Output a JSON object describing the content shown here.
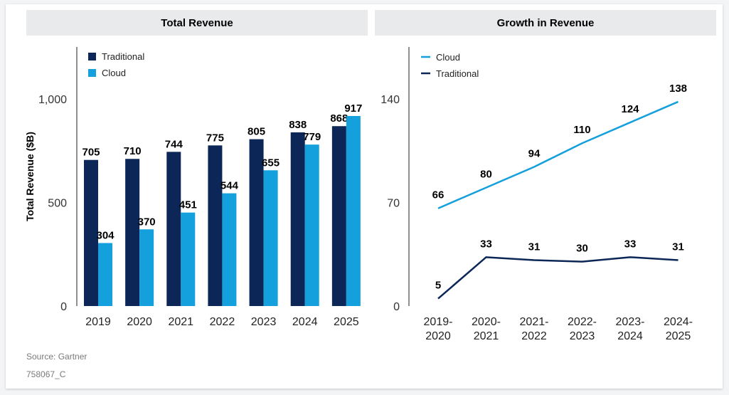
{
  "colors": {
    "traditional": "#0b2657",
    "cloud": "#13a0dc",
    "header_bg": "#e9eaec",
    "text": "#000000"
  },
  "panels": [
    {
      "title": "Total Revenue"
    },
    {
      "title": "Growth in Revenue"
    }
  ],
  "footer": {
    "source": "Source: Gartner",
    "code": "758067_C"
  },
  "chart_data": [
    {
      "type": "bar",
      "title": "Total Revenue",
      "ylabel": "Total Revenue ($B)",
      "xlabel": "",
      "categories": [
        "2019",
        "2020",
        "2021",
        "2022",
        "2023",
        "2024",
        "2025"
      ],
      "series": [
        {
          "name": "Traditional",
          "color": "#0b2657",
          "values": [
            705,
            710,
            744,
            775,
            805,
            838,
            868
          ]
        },
        {
          "name": "Cloud",
          "color": "#13a0dc",
          "values": [
            304,
            370,
            451,
            544,
            655,
            779,
            917
          ]
        }
      ],
      "ylim": [
        0,
        1250
      ],
      "yticks": [
        0,
        500,
        1000
      ],
      "ytick_labels": [
        "0",
        "500",
        "1,000"
      ],
      "legend_position": "top-left",
      "grid": false
    },
    {
      "type": "line",
      "title": "Growth in Revenue",
      "ylabel": "",
      "xlabel": "",
      "categories": [
        "2019-\n2020",
        "2020-\n2021",
        "2021-\n2022",
        "2022-\n2023",
        "2023-\n2024",
        "2024-\n2025"
      ],
      "series": [
        {
          "name": "Cloud",
          "color": "#13a0dc",
          "values": [
            66,
            80,
            94,
            110,
            124,
            138
          ]
        },
        {
          "name": "Traditional",
          "color": "#0b2657",
          "values": [
            5,
            33,
            31,
            30,
            33,
            31
          ]
        }
      ],
      "ylim": [
        0,
        175
      ],
      "yticks": [
        0,
        70,
        140
      ],
      "ytick_labels": [
        "0",
        "70",
        "140"
      ],
      "legend_position": "top-left",
      "grid": false
    }
  ]
}
